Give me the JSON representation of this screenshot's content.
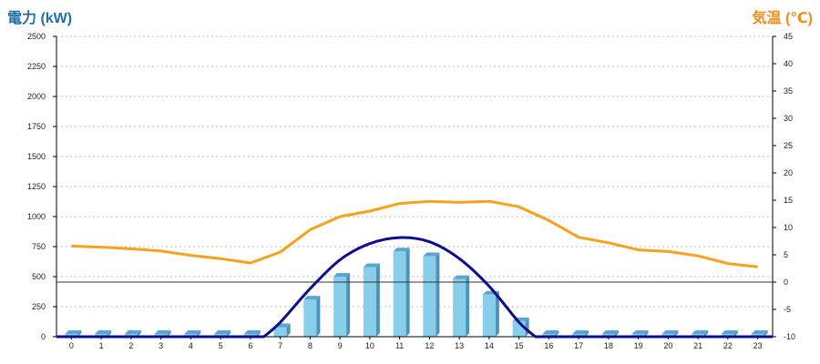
{
  "titles": {
    "left_axis": "電力 (kW)",
    "right_axis": "気温 (℃)"
  },
  "colors": {
    "bar_front": "#87ceeb",
    "bar_side": "#4f93b8",
    "bar_top": "#5aa6cf",
    "power_line": "#0d0d8f",
    "temp_line": "#f6a21a",
    "grid": "#bdbdbd",
    "zero_line": "#333333",
    "left_title": "#1f6fa8",
    "right_title": "#f28c1a"
  },
  "chart_data": {
    "type": "bar",
    "categories": [
      "0",
      "1",
      "2",
      "3",
      "4",
      "5",
      "6",
      "7",
      "8",
      "9",
      "10",
      "11",
      "12",
      "13",
      "14",
      "15",
      "16",
      "17",
      "18",
      "19",
      "20",
      "21",
      "22",
      "23"
    ],
    "y_left": {
      "label": "電力 (kW)",
      "range": [
        0,
        2500
      ],
      "ticks": [
        0,
        250,
        500,
        750,
        1000,
        1250,
        1500,
        1750,
        2000,
        2250,
        2500
      ]
    },
    "y_right": {
      "label": "気温 (℃)",
      "range": [
        -10,
        45
      ],
      "ticks": [
        -10,
        -5,
        0,
        5,
        10,
        15,
        20,
        25,
        30,
        35,
        40,
        45
      ]
    },
    "grid": true,
    "series": [
      {
        "type": "bar",
        "axis": "left",
        "values": [
          0,
          0,
          0,
          0,
          0,
          0,
          0,
          80,
          310,
          500,
          580,
          710,
          670,
          480,
          350,
          130,
          0,
          0,
          0,
          0,
          0,
          0,
          0,
          0
        ]
      },
      {
        "type": "line",
        "axis": "left",
        "smooth": true,
        "values": [
          0,
          0,
          0,
          0,
          0,
          0,
          0,
          0,
          0,
          0,
          0,
          0,
          0,
          0,
          0,
          0,
          0,
          0,
          0,
          0,
          0,
          0,
          0,
          0
        ],
        "points": [
          {
            "x": 6.45,
            "y": 0
          },
          {
            "x": 7,
            "y": 120
          },
          {
            "x": 8,
            "y": 400
          },
          {
            "x": 9,
            "y": 640
          },
          {
            "x": 10,
            "y": 775
          },
          {
            "x": 11,
            "y": 825
          },
          {
            "x": 12,
            "y": 790
          },
          {
            "x": 13,
            "y": 650
          },
          {
            "x": 14,
            "y": 420
          },
          {
            "x": 15,
            "y": 120
          },
          {
            "x": 15.55,
            "y": 0
          }
        ]
      },
      {
        "type": "line",
        "axis": "right",
        "values": [
          6.6,
          6.4,
          6.1,
          5.7,
          4.9,
          4.3,
          3.5,
          5.5,
          9.6,
          12.0,
          13.0,
          14.4,
          14.8,
          14.6,
          14.8,
          13.8,
          11.3,
          8.2,
          7.2,
          5.9,
          5.6,
          4.8,
          3.4,
          2.8
        ]
      }
    ]
  }
}
